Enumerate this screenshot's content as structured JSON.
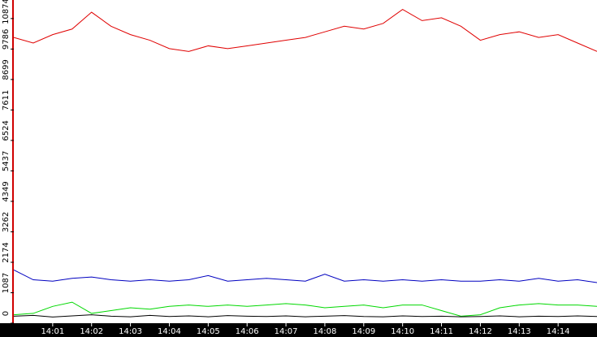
{
  "chart_data": {
    "type": "line",
    "x": [
      0,
      0.5,
      1,
      1.5,
      2,
      2.5,
      3,
      3.5,
      4,
      4.5,
      5,
      5.5,
      6,
      6.5,
      7,
      7.5,
      8,
      8.5,
      9,
      9.5,
      10,
      10.5,
      11,
      11.5,
      12,
      12.5,
      13,
      13.5,
      14,
      14.5,
      15
    ],
    "series": [
      {
        "color": "#e00000",
        "values": [
          10200,
          10000,
          10300,
          10500,
          11100,
          10600,
          10300,
          10100,
          9800,
          9700,
          9900,
          9800,
          9900,
          10000,
          10100,
          10200,
          10400,
          10600,
          10500,
          10700,
          11200,
          10800,
          10900,
          10600,
          10100,
          10300,
          10400,
          10200,
          10300,
          10000,
          9700
        ]
      },
      {
        "color": "#0000c0",
        "values": [
          1900,
          1550,
          1500,
          1600,
          1650,
          1550,
          1500,
          1550,
          1500,
          1550,
          1700,
          1500,
          1550,
          1600,
          1550,
          1500,
          1750,
          1500,
          1550,
          1500,
          1550,
          1500,
          1550,
          1500,
          1500,
          1550,
          1500,
          1600,
          1500,
          1550,
          1450
        ]
      },
      {
        "color": "#00d800",
        "values": [
          300,
          350,
          600,
          750,
          350,
          450,
          550,
          500,
          600,
          650,
          600,
          650,
          600,
          650,
          700,
          650,
          550,
          600,
          650,
          550,
          650,
          650,
          450,
          250,
          300,
          550,
          650,
          700,
          650,
          650,
          600
        ]
      },
      {
        "color": "#000000",
        "values": [
          250,
          280,
          220,
          260,
          300,
          250,
          230,
          280,
          240,
          260,
          230,
          270,
          250,
          240,
          260,
          230,
          250,
          270,
          240,
          230,
          260,
          240,
          250,
          230,
          240,
          260,
          230,
          250,
          240,
          260,
          240
        ]
      }
    ],
    "xlim": [
      0,
      15
    ],
    "xticks": [
      {
        "value": 1,
        "label": "14:01"
      },
      {
        "value": 2,
        "label": "14:02"
      },
      {
        "value": 3,
        "label": "14:03"
      },
      {
        "value": 4,
        "label": "14:04"
      },
      {
        "value": 5,
        "label": "14:05"
      },
      {
        "value": 6,
        "label": "14:06"
      },
      {
        "value": 7,
        "label": "14:07"
      },
      {
        "value": 8,
        "label": "14:08"
      },
      {
        "value": 9,
        "label": "14:09"
      },
      {
        "value": 10,
        "label": "14:10"
      },
      {
        "value": 11,
        "label": "14:11"
      },
      {
        "value": 12,
        "label": "14:12"
      },
      {
        "value": 13,
        "label": "14:13"
      },
      {
        "value": 14,
        "label": "14:14"
      }
    ],
    "ylim": [
      0,
      11536
    ],
    "yticks": [
      0,
      1087,
      2174,
      3262,
      4349,
      5437,
      6524,
      7611,
      8699,
      9786,
      10874
    ]
  }
}
